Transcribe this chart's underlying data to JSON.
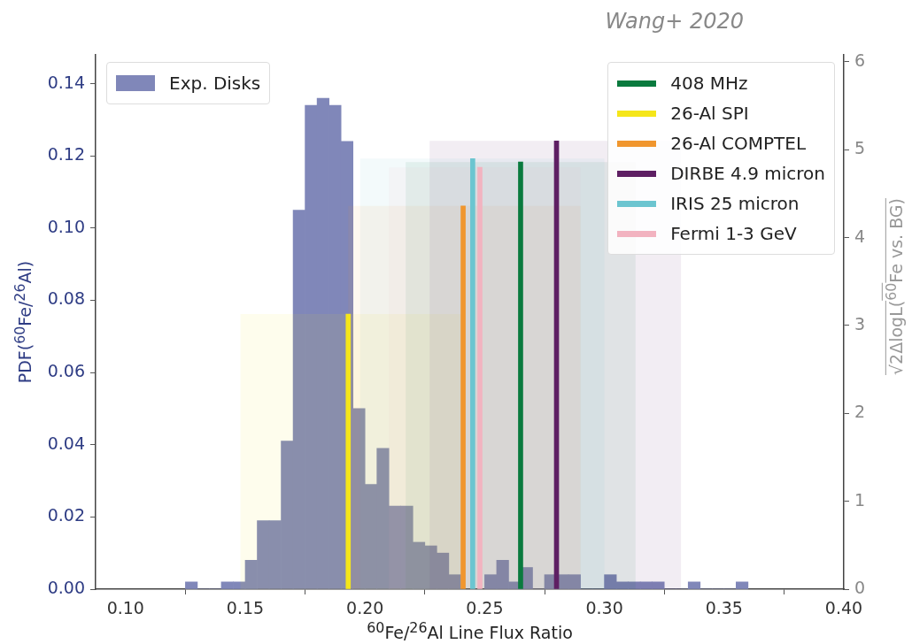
{
  "chart_data": {
    "type": "histogram",
    "xlabel": "$^{60}$Fe/$^{26}$Al Line Flux Ratio",
    "ylabel": "PDF($^{60}$Fe/$^{26}$Al)",
    "y2label": "√2ΔlogL($^{60}$Fe vs. BG)",
    "annotations": [
      "Wang+ 2020"
    ],
    "xlim": [
      0.0875,
      0.4
    ],
    "xticks": [
      {
        "value": 0.1,
        "label": "0.10"
      },
      {
        "value": 0.15,
        "label": "0.15"
      },
      {
        "value": 0.2,
        "label": "0.20"
      },
      {
        "value": 0.25,
        "label": "0.25"
      },
      {
        "value": 0.3,
        "label": "0.30"
      },
      {
        "value": 0.35,
        "label": "0.35"
      },
      {
        "value": 0.4,
        "label": "0.40"
      }
    ],
    "ylim": [
      0,
      0.148
    ],
    "yticks": [
      {
        "value": 0,
        "label": "0.00"
      },
      {
        "value": 0.02,
        "label": "0.02"
      },
      {
        "value": 0.04,
        "label": "0.04"
      },
      {
        "value": 0.06,
        "label": "0.06"
      },
      {
        "value": 0.08,
        "label": "0.08"
      },
      {
        "value": 0.1,
        "label": "0.10"
      },
      {
        "value": 0.12,
        "label": "0.12"
      },
      {
        "value": 0.14,
        "label": "0.14"
      }
    ],
    "y2lim": [
      0,
      6.08
    ],
    "y2ticks": [
      0,
      1,
      2,
      3,
      4,
      5,
      6
    ],
    "legend": "top right",
    "series": [
      {
        "name": "Exp. Disks",
        "color": "#8087b9",
        "bins": [
          0.125,
          0.13,
          0.135,
          0.14,
          0.145,
          0.15,
          0.155,
          0.16,
          0.165,
          0.17,
          0.175,
          0.18,
          0.185,
          0.19,
          0.195,
          0.2,
          0.205,
          0.21,
          0.215,
          0.22,
          0.225,
          0.23,
          0.235,
          0.24,
          0.245,
          0.25,
          0.255,
          0.26,
          0.265,
          0.27,
          0.275,
          0.28,
          0.285,
          0.29,
          0.295,
          0.3,
          0.305,
          0.31,
          0.315,
          0.32,
          0.325,
          0.33,
          0.335,
          0.34,
          0.345,
          0.35,
          0.355,
          0.36
        ],
        "values": [
          0.002,
          0,
          0,
          0.002,
          0.002,
          0.008,
          0.019,
          0.019,
          0.041,
          0.105,
          0.134,
          0.136,
          0.134,
          0.124,
          0.05,
          0.029,
          0.039,
          0.023,
          0.023,
          0.013,
          0.012,
          0.01,
          0.004,
          null,
          null,
          0.004,
          0.008,
          0.002,
          0.006,
          0,
          0.004,
          0.004,
          0.004,
          0,
          0,
          0.004,
          0.002,
          0.002,
          0.002,
          0.002,
          0,
          0,
          0.002,
          0,
          0,
          0,
          0.002
        ]
      },
      {
        "type": "bar",
        "name": "408 MHz",
        "color": "#0a7a3e",
        "axis": "y2",
        "x": [
          0.265
        ],
        "values": [
          4.86
        ]
      },
      {
        "type": "bar",
        "name": "26-Al SPI",
        "color": "#f5e61a",
        "axis": "y2",
        "x": [
          0.193
        ],
        "values": [
          3.13
        ]
      },
      {
        "type": "bar",
        "name": "26-Al COMPTEL",
        "color": "#f0962e",
        "axis": "y2",
        "x": [
          0.241
        ],
        "values": [
          4.36
        ]
      },
      {
        "type": "bar",
        "name": "DIRBE 4.9 micron",
        "color": "#5e1f63",
        "axis": "y2",
        "x": [
          0.28
        ],
        "values": [
          5.1
        ]
      },
      {
        "type": "bar",
        "name": "IRIS 25 micron",
        "color": "#6cc5d0",
        "axis": "y2",
        "x": [
          0.245
        ],
        "values": [
          4.9
        ]
      },
      {
        "type": "bar",
        "name": "Fermi 1-3 GeV",
        "color": "#f2b3c0",
        "axis": "y2",
        "x": [
          0.248
        ],
        "values": [
          4.8
        ]
      }
    ],
    "bands": [
      {
        "axis": "x",
        "from": 0.217,
        "to": 0.313,
        "color": "#0a7a3e"
      },
      {
        "axis": "x",
        "from": 0.148,
        "to": 0.24,
        "color": "#f5e61a"
      },
      {
        "axis": "x",
        "from": 0.193,
        "to": 0.29,
        "color": "#f0962e"
      },
      {
        "axis": "x",
        "from": 0.227,
        "to": 0.332,
        "color": "#5e1f63"
      },
      {
        "axis": "x",
        "from": 0.198,
        "to": 0.3,
        "color": "#6cc5d0"
      },
      {
        "axis": "x",
        "from": 0.21,
        "to": 0.29,
        "color": "#f2b3c0"
      }
    ]
  }
}
